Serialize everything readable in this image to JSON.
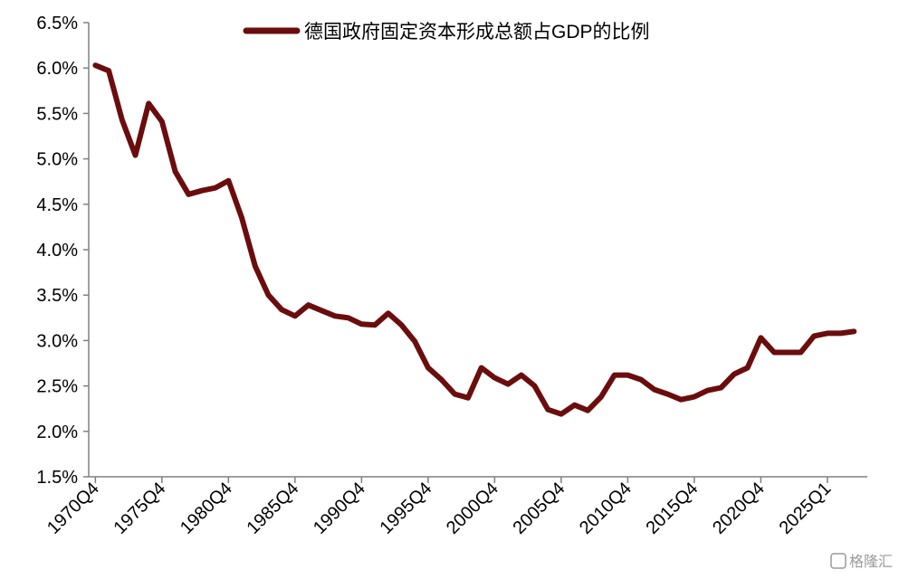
{
  "chart_data": {
    "type": "line",
    "yticks": [
      "1.5%",
      "2.0%",
      "2.5%",
      "3.0%",
      "3.5%",
      "4.0%",
      "4.5%",
      "5.0%",
      "5.5%",
      "6.0%",
      "6.5%"
    ],
    "ytick_values": [
      1.5,
      2.0,
      2.5,
      3.0,
      3.5,
      4.0,
      4.5,
      5.0,
      5.5,
      6.0,
      6.5
    ],
    "ylim": [
      1.5,
      6.5
    ],
    "xticks": [
      "1970Q4",
      "1975Q4",
      "1980Q4",
      "1985Q4",
      "1990Q4",
      "1995Q4",
      "2000Q4",
      "2005Q4",
      "2010Q4",
      "2015Q4",
      "2020Q4",
      "2025Q1"
    ],
    "xtick_years": [
      1970,
      1975,
      1980,
      1985,
      1990,
      1995,
      2000,
      2005,
      2010,
      2015,
      2020,
      2025
    ],
    "xlim": [
      1969.5,
      2028
    ],
    "grid": false,
    "legend_position": "top-center",
    "color": "#6b0d0d",
    "series": [
      {
        "name": "德国政府固定资本形成总额占GDP的比例",
        "x": [
          1970,
          1971,
          1972,
          1973,
          1974,
          1975,
          1976,
          1977,
          1978,
          1979,
          1980,
          1981,
          1982,
          1983,
          1984,
          1985,
          1986,
          1987,
          1988,
          1989,
          1990,
          1991,
          1992,
          1993,
          1994,
          1995,
          1996,
          1997,
          1998,
          1999,
          2000,
          2001,
          2002,
          2003,
          2004,
          2005,
          2006,
          2007,
          2008,
          2009,
          2010,
          2011,
          2012,
          2013,
          2014,
          2015,
          2016,
          2017,
          2018,
          2019,
          2020,
          2021,
          2022,
          2023,
          2024,
          2025,
          2026,
          2027
        ],
        "values": [
          6.03,
          5.97,
          5.43,
          5.04,
          5.61,
          5.41,
          4.86,
          4.61,
          4.65,
          4.68,
          4.76,
          4.35,
          3.82,
          3.5,
          3.34,
          3.27,
          3.39,
          3.33,
          3.27,
          3.25,
          3.18,
          3.17,
          3.3,
          3.17,
          2.99,
          2.7,
          2.57,
          2.41,
          2.37,
          2.7,
          2.59,
          2.52,
          2.62,
          2.5,
          2.24,
          2.19,
          2.29,
          2.23,
          2.38,
          2.62,
          2.62,
          2.57,
          2.46,
          2.41,
          2.35,
          2.38,
          2.45,
          2.48,
          2.63,
          2.7,
          3.03,
          2.87,
          2.87,
          2.87,
          3.05,
          3.08,
          3.08,
          3.1
        ]
      }
    ]
  },
  "watermark": {
    "text": "格隆汇"
  }
}
